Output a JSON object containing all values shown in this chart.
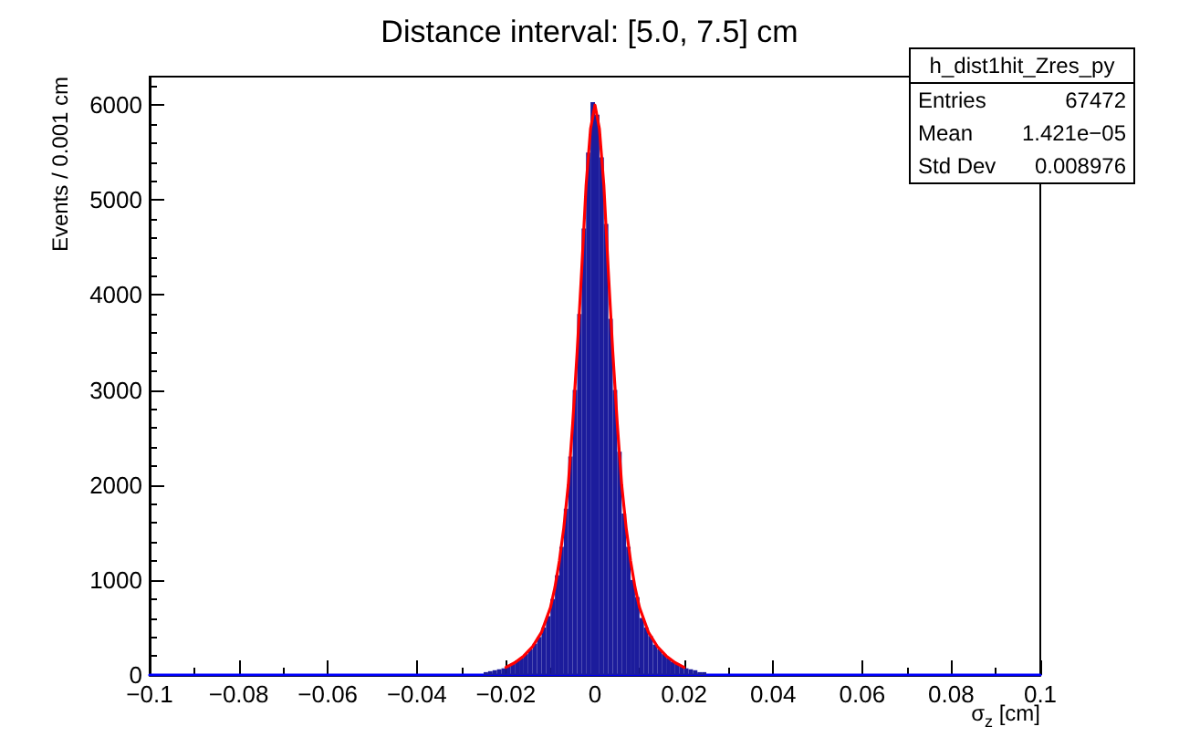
{
  "chart_data": {
    "type": "histogram",
    "title": "Distance interval: [5.0, 7.5] cm",
    "xlabel": "σ$_{z}$ [cm]",
    "ylabel": "Events / 0.001 cm",
    "bins": [
      -0.025,
      -0.024,
      -0.023,
      -0.022,
      -0.021,
      -0.02,
      -0.019,
      -0.018,
      -0.017,
      -0.016,
      -0.015,
      -0.014,
      -0.013,
      -0.012,
      -0.011,
      -0.01,
      -0.009,
      -0.008,
      -0.007,
      -0.006,
      -0.005,
      -0.004,
      -0.003,
      -0.002,
      -0.001,
      0,
      0.001,
      0.002,
      0.003,
      0.004,
      0.005,
      0.006,
      0.007,
      0.008,
      0.009,
      0.01,
      0.011,
      0.012,
      0.013,
      0.014,
      0.015,
      0.016,
      0.017,
      0.018,
      0.019,
      0.02,
      0.021,
      0.022,
      0.023,
      0.024,
      0.025
    ],
    "series": [
      {
        "color": "#1c1c9c",
        "values": [
          30,
          40,
          50,
          60,
          70,
          90,
          120,
          150,
          180,
          220,
          270,
          330,
          400,
          500,
          620,
          800,
          1050,
          1350,
          1750,
          2300,
          3000,
          3800,
          4700,
          5500,
          6030,
          5900,
          5450,
          4750,
          3750,
          3000,
          2350,
          1700,
          1350,
          1000,
          820,
          600,
          500,
          410,
          320,
          270,
          220,
          180,
          140,
          120,
          90,
          70,
          60,
          50,
          30,
          30
        ]
      },
      {
        "type": "line",
        "color": "#ff0000",
        "x": [
          -0.02,
          -0.018,
          -0.016,
          -0.014,
          -0.012,
          -0.01,
          -0.009,
          -0.008,
          -0.007,
          -0.006,
          -0.005,
          -0.004,
          -0.003,
          -0.002,
          -0.001,
          0,
          0.001,
          0.002,
          0.003,
          0.004,
          0.005,
          0.006,
          0.007,
          0.008,
          0.009,
          0.01,
          0.012,
          0.014,
          0.016,
          0.018,
          0.02
        ],
        "values": [
          80,
          130,
          200,
          300,
          450,
          710,
          920,
          1200,
          1550,
          2000,
          2650,
          3400,
          4250,
          5150,
          5750,
          6000,
          5750,
          5150,
          4250,
          3400,
          2650,
          2000,
          1550,
          1200,
          920,
          710,
          450,
          300,
          200,
          130,
          80
        ]
      },
      {
        "type": "line",
        "color": "#0000ff",
        "x": [
          -0.1,
          0.1
        ],
        "values": [
          0,
          0
        ]
      }
    ],
    "xlim": [
      -0.1,
      0.1
    ],
    "xticks": [
      -0.1,
      -0.08,
      -0.06,
      -0.04,
      -0.02,
      0,
      0.02,
      0.04,
      0.06,
      0.08,
      0.1
    ],
    "ylim": [
      0,
      6300
    ],
    "yticks": [
      0,
      1000,
      2000,
      3000,
      4000,
      5000,
      6000
    ],
    "marker": "none",
    "annotations": [
      "h_dist1hit_Zres_py",
      "Entries",
      "67472",
      "Mean",
      "1.421e−05",
      "Std Dev",
      "0.008976"
    ]
  }
}
